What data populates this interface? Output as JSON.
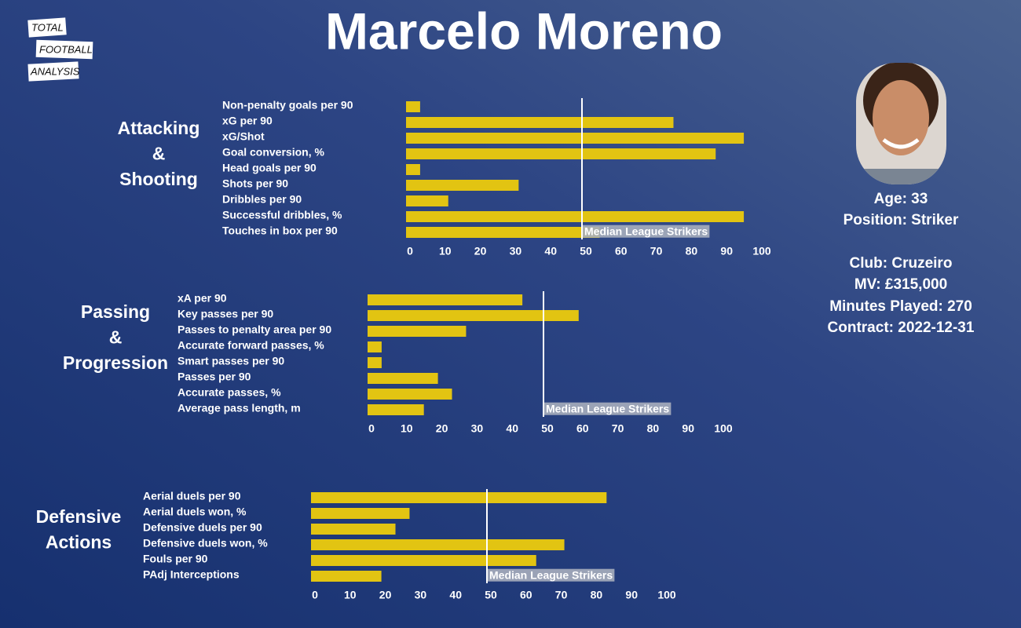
{
  "title": "Marcelo Moreno",
  "logo": [
    "TOTAL",
    "FOOTBALL",
    "ANALYSIS"
  ],
  "player": {
    "details": [
      "Age: 33",
      "Position: Striker",
      "Club: Cruzeiro",
      "MV: £315,000",
      "Minutes Played: 270",
      "Contract: 2022-12-31"
    ]
  },
  "chart_data": [
    {
      "type": "bar",
      "orientation": "horizontal",
      "section": [
        "Attacking",
        "&",
        "Shooting"
      ],
      "categories": [
        "Non-penalty goals per 90",
        "xG per 90",
        "xG/Shot",
        "Goal conversion, %",
        "Head goals per 90",
        "Shots per 90",
        "Dribbles per 90",
        "Successful dribbles, %",
        "Touches in box per 90"
      ],
      "values": [
        4,
        76,
        96,
        88,
        4,
        32,
        12,
        96,
        55
      ],
      "color": "#e2c412",
      "xlim": [
        0,
        100
      ],
      "xticks": [
        0,
        10,
        20,
        30,
        40,
        50,
        60,
        70,
        80,
        90,
        100
      ],
      "median": 50,
      "median_label": "Median League Strikers"
    },
    {
      "type": "bar",
      "orientation": "horizontal",
      "section": [
        "Passing",
        "&",
        "Progression"
      ],
      "categories": [
        "xA per 90",
        "Key passes per 90",
        "Passes to penalty area per 90",
        "Accurate forward passes, %",
        "Smart passes per 90",
        "Passes per 90",
        "Accurate passes, %",
        "Average pass length, m"
      ],
      "values": [
        44,
        60,
        28,
        4,
        4,
        20,
        24,
        16
      ],
      "color": "#e2c412",
      "xlim": [
        0,
        100
      ],
      "xticks": [
        0,
        10,
        20,
        30,
        40,
        50,
        60,
        70,
        80,
        90,
        100
      ],
      "median": 50,
      "median_label": "Median League Strikers"
    },
    {
      "type": "bar",
      "orientation": "horizontal",
      "section": [
        "Defensive",
        "Actions"
      ],
      "categories": [
        "Aerial duels per 90",
        "Aerial duels won, %",
        "Defensive duels per 90",
        "Defensive duels won, %",
        "Fouls per 90",
        "PAdj Interceptions"
      ],
      "values": [
        84,
        28,
        24,
        72,
        64,
        20
      ],
      "color": "#e2c412",
      "xlim": [
        0,
        100
      ],
      "xticks": [
        0,
        10,
        20,
        30,
        40,
        50,
        60,
        70,
        80,
        90,
        100
      ],
      "median": 50,
      "median_label": "Median League Strikers"
    }
  ]
}
